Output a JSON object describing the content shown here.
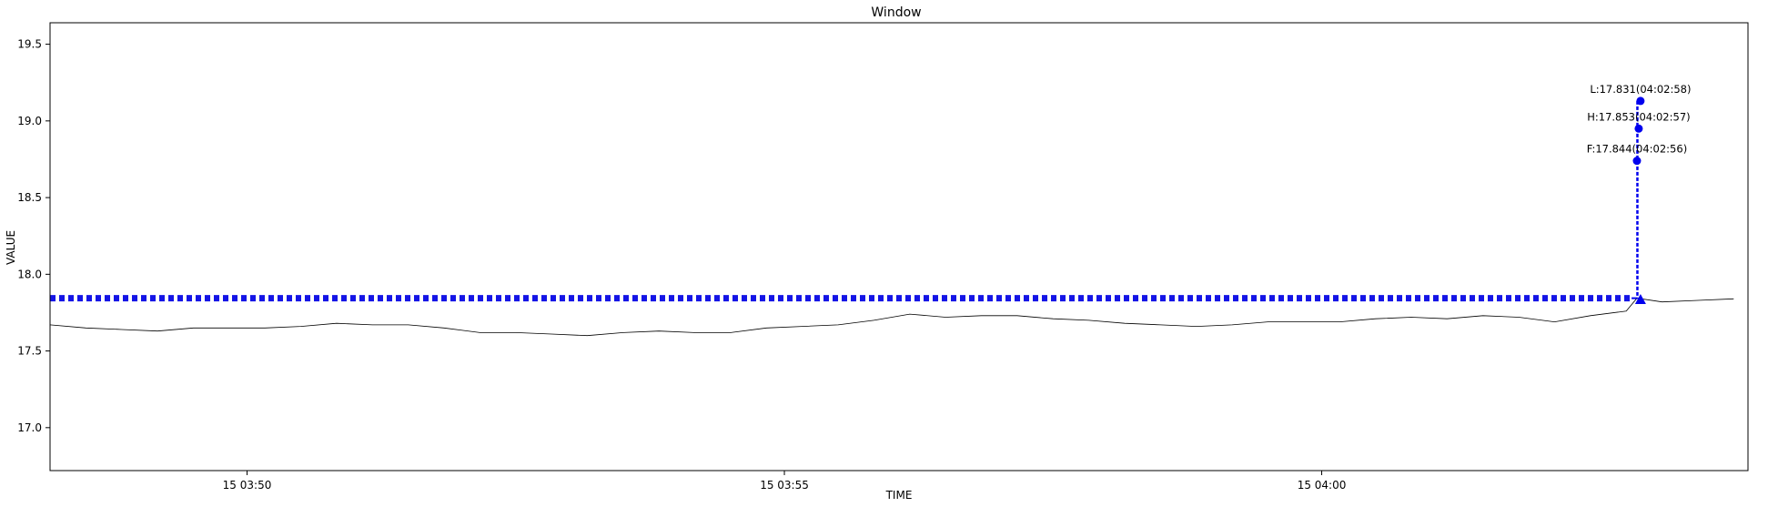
{
  "chart_data": {
    "type": "line",
    "title": "Window",
    "xlabel": "TIME",
    "ylabel": "VALUE",
    "xlim": [
      "15 03:48:10",
      "15 04:03:58"
    ],
    "ylim": [
      16.72,
      19.64
    ],
    "x_ticks": [
      {
        "t": "15 03:50:00",
        "label": "15 03:50"
      },
      {
        "t": "15 03:55:00",
        "label": "15 03:55"
      },
      {
        "t": "15 04:00:00",
        "label": "15 04:00"
      }
    ],
    "y_ticks": [
      {
        "v": 17.0,
        "label": "17.0"
      },
      {
        "v": 17.5,
        "label": "17.5"
      },
      {
        "v": 18.0,
        "label": "18.0"
      },
      {
        "v": 18.5,
        "label": "18.5"
      },
      {
        "v": 19.0,
        "label": "19.0"
      },
      {
        "v": 19.5,
        "label": "19.5"
      }
    ],
    "grid": false,
    "series": [
      {
        "color": "#000000",
        "style": "thin line",
        "points": [
          [
            "15 03:48:10",
            17.67
          ],
          [
            "15 03:48:30",
            17.65
          ],
          [
            "15 03:48:50",
            17.64
          ],
          [
            "15 03:49:10",
            17.63
          ],
          [
            "15 03:49:30",
            17.65
          ],
          [
            "15 03:49:50",
            17.65
          ],
          [
            "15 03:50:10",
            17.65
          ],
          [
            "15 03:50:30",
            17.66
          ],
          [
            "15 03:50:50",
            17.68
          ],
          [
            "15 03:51:10",
            17.67
          ],
          [
            "15 03:51:30",
            17.67
          ],
          [
            "15 03:51:50",
            17.65
          ],
          [
            "15 03:52:10",
            17.62
          ],
          [
            "15 03:52:30",
            17.62
          ],
          [
            "15 03:52:50",
            17.61
          ],
          [
            "15 03:53:10",
            17.6
          ],
          [
            "15 03:53:30",
            17.62
          ],
          [
            "15 03:53:50",
            17.63
          ],
          [
            "15 03:54:10",
            17.62
          ],
          [
            "15 03:54:30",
            17.62
          ],
          [
            "15 03:54:50",
            17.65
          ],
          [
            "15 03:55:10",
            17.66
          ],
          [
            "15 03:55:30",
            17.67
          ],
          [
            "15 03:55:50",
            17.7
          ],
          [
            "15 03:56:10",
            17.74
          ],
          [
            "15 03:56:30",
            17.72
          ],
          [
            "15 03:56:50",
            17.73
          ],
          [
            "15 03:57:10",
            17.73
          ],
          [
            "15 03:57:30",
            17.71
          ],
          [
            "15 03:57:50",
            17.7
          ],
          [
            "15 03:58:10",
            17.68
          ],
          [
            "15 03:58:30",
            17.67
          ],
          [
            "15 03:58:50",
            17.66
          ],
          [
            "15 03:59:10",
            17.67
          ],
          [
            "15 03:59:30",
            17.69
          ],
          [
            "15 03:59:50",
            17.69
          ],
          [
            "15 04:00:10",
            17.69
          ],
          [
            "15 04:00:30",
            17.71
          ],
          [
            "15 04:00:50",
            17.72
          ],
          [
            "15 04:01:10",
            17.71
          ],
          [
            "15 04:01:30",
            17.73
          ],
          [
            "15 04:01:50",
            17.72
          ],
          [
            "15 04:02:10",
            17.69
          ],
          [
            "15 04:02:30",
            17.73
          ],
          [
            "15 04:02:50",
            17.76
          ],
          [
            "15 04:02:56",
            17.844
          ],
          [
            "15 04:03:10",
            17.82
          ],
          [
            "15 04:03:30",
            17.83
          ],
          [
            "15 04:03:50",
            17.84
          ]
        ]
      },
      {
        "color": "#1414e6",
        "style": "dotted",
        "level": 17.844,
        "from": "15 03:48:10",
        "to": "15 04:02:53"
      }
    ],
    "markers": [
      {
        "t": "15 04:02:56",
        "v": 18.74,
        "label": "F:17.844(04:02:56)",
        "shape": "circle"
      },
      {
        "t": "15 04:02:57",
        "v": 18.95,
        "label": "H:17.853(04:02:57)",
        "shape": "circle"
      },
      {
        "t": "15 04:02:58",
        "v": 19.13,
        "label": "L:17.831(04:02:58)",
        "shape": "circle"
      },
      {
        "t": "15 04:02:58",
        "v": 17.83,
        "label": "",
        "shape": "triangle"
      }
    ],
    "marker_color": "#0000ee"
  }
}
